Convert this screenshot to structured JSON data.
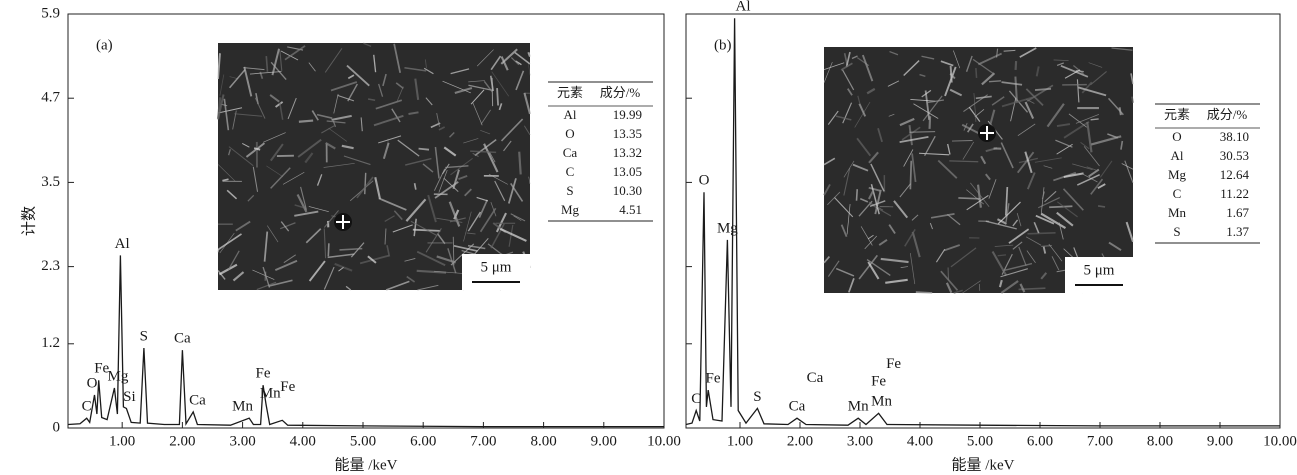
{
  "chart_data": [
    {
      "type": "line",
      "panel_label": "(a)",
      "ylabel": "计数",
      "xlabel": "能量 /keV",
      "color": "#1a1a1a",
      "xlim": [
        0.1,
        10
      ],
      "ylim": [
        0,
        5.9
      ],
      "xticks": [
        {
          "value": 1,
          "label": "1.00"
        },
        {
          "value": 2,
          "label": "2.00"
        },
        {
          "value": 3,
          "label": "3.00"
        },
        {
          "value": 4,
          "label": "4.00"
        },
        {
          "value": 5,
          "label": "5.00"
        },
        {
          "value": 6,
          "label": "6.00"
        },
        {
          "value": 7,
          "label": "7.00"
        },
        {
          "value": 8,
          "label": "8.00"
        },
        {
          "value": 9,
          "label": "9.00"
        },
        {
          "value": 10,
          "label": "10.00"
        }
      ],
      "yticks": [
        0,
        1.2,
        2.3,
        3.5,
        4.7,
        5.9
      ],
      "show_ytick_labels": true,
      "x": [
        0.1,
        0.3,
        0.41,
        0.46,
        0.54,
        0.58,
        0.61,
        0.66,
        0.75,
        0.87,
        0.92,
        0.97,
        1.02,
        1.07,
        1.15,
        1.3,
        1.36,
        1.42,
        1.7,
        1.95,
        2.0,
        2.06,
        2.18,
        2.25,
        2.8,
        3.11,
        3.18,
        3.3,
        3.34,
        3.39,
        3.45,
        3.66,
        3.75,
        5,
        7,
        10
      ],
      "values": [
        0.05,
        0.06,
        0.14,
        0.08,
        0.47,
        0.2,
        0.68,
        0.15,
        0.12,
        0.57,
        0.2,
        2.46,
        0.3,
        0.28,
        0.08,
        0.07,
        1.14,
        0.07,
        0.05,
        0.05,
        1.11,
        0.06,
        0.23,
        0.05,
        0.04,
        0.14,
        0.05,
        0.05,
        0.61,
        0.33,
        0.05,
        0.11,
        0.04,
        0.03,
        0.02,
        0.02
      ],
      "annotations": [
        {
          "text": "C",
          "x": 0.41,
          "y": 0.14
        },
        {
          "text": "O",
          "x": 0.5,
          "y": 0.47
        },
        {
          "text": "Fe",
          "x": 0.66,
          "y": 0.68
        },
        {
          "text": "Mg",
          "x": 0.93,
          "y": 0.57
        },
        {
          "text": "Al",
          "x": 1.0,
          "y": 2.46
        },
        {
          "text": "Si",
          "x": 1.12,
          "y": 0.28
        },
        {
          "text": "S",
          "x": 1.36,
          "y": 1.14
        },
        {
          "text": "Ca",
          "x": 2.0,
          "y": 1.11
        },
        {
          "text": "Ca",
          "x": 2.25,
          "y": 0.23
        },
        {
          "text": "Mn",
          "x": 3.0,
          "y": 0.14
        },
        {
          "text": "Fe",
          "x": 3.34,
          "y": 0.61
        },
        {
          "text": "Mn",
          "x": 3.46,
          "y": 0.33
        },
        {
          "text": "Fe",
          "x": 3.75,
          "y": 0.42
        }
      ],
      "inset": {
        "scale_bar": "5 μm",
        "table": {
          "header": [
            "元素",
            "成分/%"
          ],
          "rows": [
            [
              "Al",
              "19.99"
            ],
            [
              "O",
              "13.35"
            ],
            [
              "Ca",
              "13.32"
            ],
            [
              "C",
              "13.05"
            ],
            [
              "S",
              "10.30"
            ],
            [
              "Mg",
              "4.51"
            ]
          ]
        }
      }
    },
    {
      "type": "line",
      "panel_label": "(b)",
      "xlabel": "能量 /keV",
      "color": "#1a1a1a",
      "xlim": [
        0.1,
        10
      ],
      "ylim": [
        0,
        5.9
      ],
      "xticks": [
        {
          "value": 1,
          "label": "1.00"
        },
        {
          "value": 2,
          "label": "2.00"
        },
        {
          "value": 3,
          "label": "3.00"
        },
        {
          "value": 4,
          "label": "4.00"
        },
        {
          "value": 5,
          "label": "5.00"
        },
        {
          "value": 6,
          "label": "6.00"
        },
        {
          "value": 7,
          "label": "7.00"
        },
        {
          "value": 8,
          "label": "8.00"
        },
        {
          "value": 9,
          "label": "9.00"
        },
        {
          "value": 10,
          "label": "10.00"
        }
      ],
      "yticks": [
        0,
        1.2,
        2.3,
        3.5,
        4.7,
        5.9
      ],
      "show_ytick_labels": false,
      "x": [
        0.1,
        0.2,
        0.27,
        0.33,
        0.4,
        0.44,
        0.47,
        0.55,
        0.7,
        0.79,
        0.85,
        0.91,
        0.97,
        1.1,
        1.29,
        1.4,
        1.8,
        1.95,
        2.1,
        2.8,
        2.97,
        3.1,
        3.31,
        3.45,
        5,
        7,
        10
      ],
      "values": [
        0.05,
        0.07,
        0.25,
        0.1,
        3.36,
        0.3,
        0.54,
        0.12,
        0.1,
        2.68,
        0.3,
        5.84,
        0.25,
        0.07,
        0.28,
        0.06,
        0.05,
        0.14,
        0.05,
        0.04,
        0.14,
        0.05,
        0.21,
        0.05,
        0.04,
        0.03,
        0.03
      ],
      "annotations": [
        {
          "text": "C",
          "x": 0.27,
          "y": 0.25
        },
        {
          "text": "O",
          "x": 0.4,
          "y": 3.36
        },
        {
          "text": "Fe",
          "x": 0.55,
          "y": 0.54
        },
        {
          "text": "Mg",
          "x": 0.79,
          "y": 2.68
        },
        {
          "text": "Al",
          "x": 1.05,
          "y": 5.84
        },
        {
          "text": "S",
          "x": 1.29,
          "y": 0.28
        },
        {
          "text": "Ca",
          "x": 1.95,
          "y": 0.14
        },
        {
          "text": "Ca",
          "x": 2.25,
          "y": 0.55
        },
        {
          "text": "Mn",
          "x": 2.97,
          "y": 0.14
        },
        {
          "text": "Mn",
          "x": 3.36,
          "y": 0.21
        },
        {
          "text": "Fe",
          "x": 3.31,
          "y": 0.5
        },
        {
          "text": "Fe",
          "x": 3.56,
          "y": 0.75
        }
      ],
      "inset": {
        "scale_bar": "5 μm",
        "table": {
          "header": [
            "元素",
            "成分/%"
          ],
          "rows": [
            [
              "O",
              "38.10"
            ],
            [
              "Al",
              "30.53"
            ],
            [
              "Mg",
              "12.64"
            ],
            [
              "C",
              "11.22"
            ],
            [
              "Mn",
              "1.67"
            ],
            [
              "S",
              "1.37"
            ]
          ]
        }
      }
    }
  ]
}
